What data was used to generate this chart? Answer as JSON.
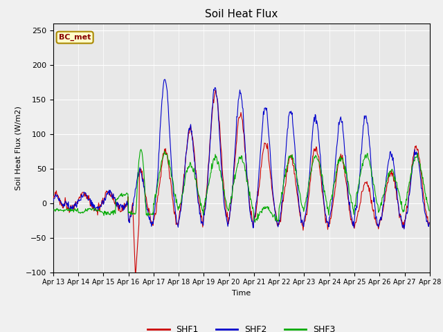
{
  "title": "Soil Heat Flux",
  "ylabel": "Soil Heat Flux (W/m2)",
  "xlabel": "Time",
  "ylim": [
    -100,
    260
  ],
  "background_color": "#f0f0f0",
  "plot_bg_color": "#e8e8e8",
  "shf1_color": "#cc0000",
  "shf2_color": "#0000cc",
  "shf3_color": "#00aa00",
  "legend_label1": "SHF1",
  "legend_label2": "SHF2",
  "legend_label3": "SHF3",
  "annotation_text": "BC_met",
  "annotation_bg": "#ffffcc",
  "annotation_border": "#aa8800",
  "yticks": [
    -100,
    -50,
    0,
    50,
    100,
    150,
    200,
    250
  ],
  "xtick_labels": [
    "Apr 13",
    "Apr 14",
    "Apr 15",
    "Apr 16",
    "Apr 17",
    "Apr 18",
    "Apr 19",
    "Apr 20",
    "Apr 21",
    "Apr 22",
    "Apr 23",
    "Apr 24",
    "Apr 25",
    "Apr 26",
    "Apr 27",
    "Apr 28"
  ],
  "days": 15,
  "pts_per_day": 48
}
